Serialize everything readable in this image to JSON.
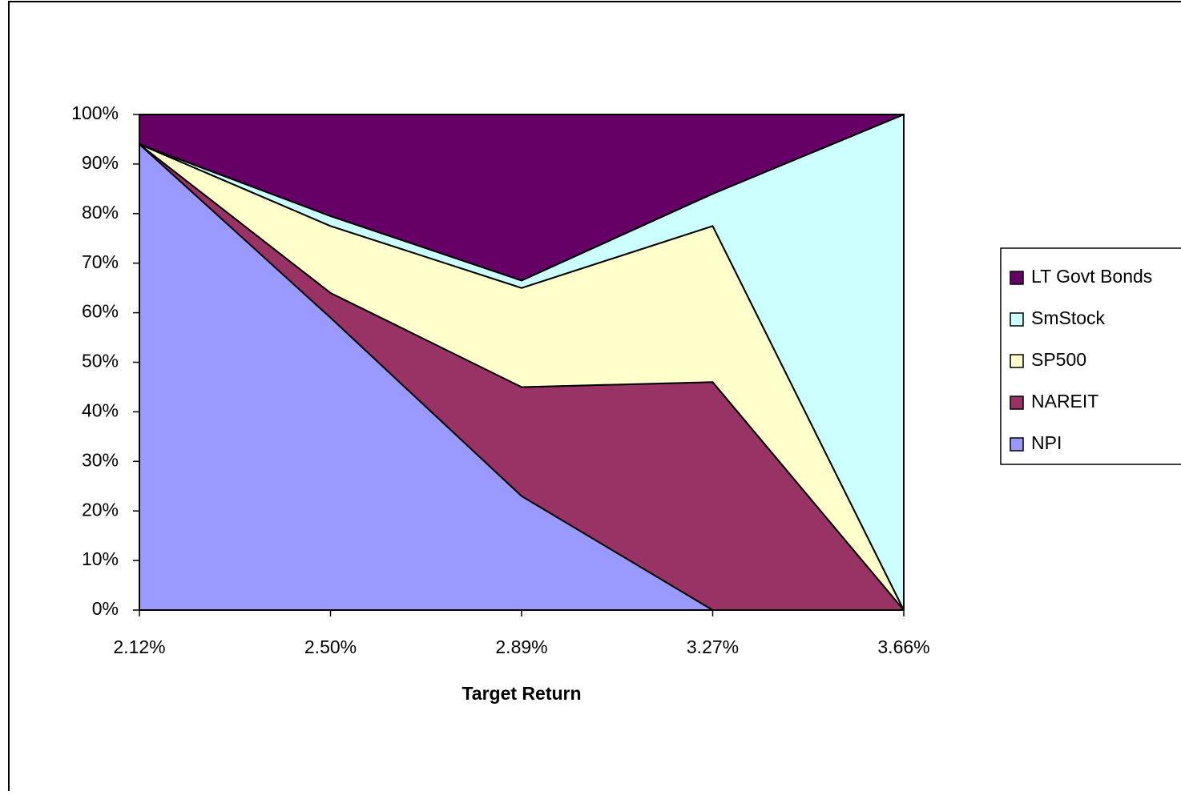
{
  "chart_data": {
    "type": "stacked_area",
    "x_label": "Target Return",
    "categories": [
      "2.12%",
      "2.50%",
      "2.89%",
      "3.27%",
      "3.66%"
    ],
    "series": [
      {
        "name": "NPI",
        "color": "#9999ff",
        "values": [
          94,
          59,
          23,
          0,
          0
        ]
      },
      {
        "name": "NAREIT",
        "color": "#993366",
        "values": [
          0,
          5,
          22,
          46,
          0
        ]
      },
      {
        "name": "SP500",
        "color": "#ffffcc",
        "values": [
          0,
          13.5,
          20,
          31.5,
          0
        ]
      },
      {
        "name": "SmStock",
        "color": "#ccffff",
        "values": [
          0,
          2,
          1.5,
          6.5,
          100
        ]
      },
      {
        "name": "LT Govt Bonds",
        "color": "#660066",
        "values": [
          6,
          20.5,
          33.5,
          16,
          0
        ]
      }
    ],
    "ylim": [
      0,
      100
    ],
    "yticks": [
      {
        "value": 0,
        "label": "0%"
      },
      {
        "value": 10,
        "label": "10%"
      },
      {
        "value": 20,
        "label": "20%"
      },
      {
        "value": 30,
        "label": "30%"
      },
      {
        "value": 40,
        "label": "40%"
      },
      {
        "value": 50,
        "label": "50%"
      },
      {
        "value": 60,
        "label": "60%"
      },
      {
        "value": 70,
        "label": "70%"
      },
      {
        "value": 80,
        "label": "80%"
      },
      {
        "value": 90,
        "label": "90%"
      },
      {
        "value": 100,
        "label": "100%"
      }
    ],
    "legend": "right"
  }
}
